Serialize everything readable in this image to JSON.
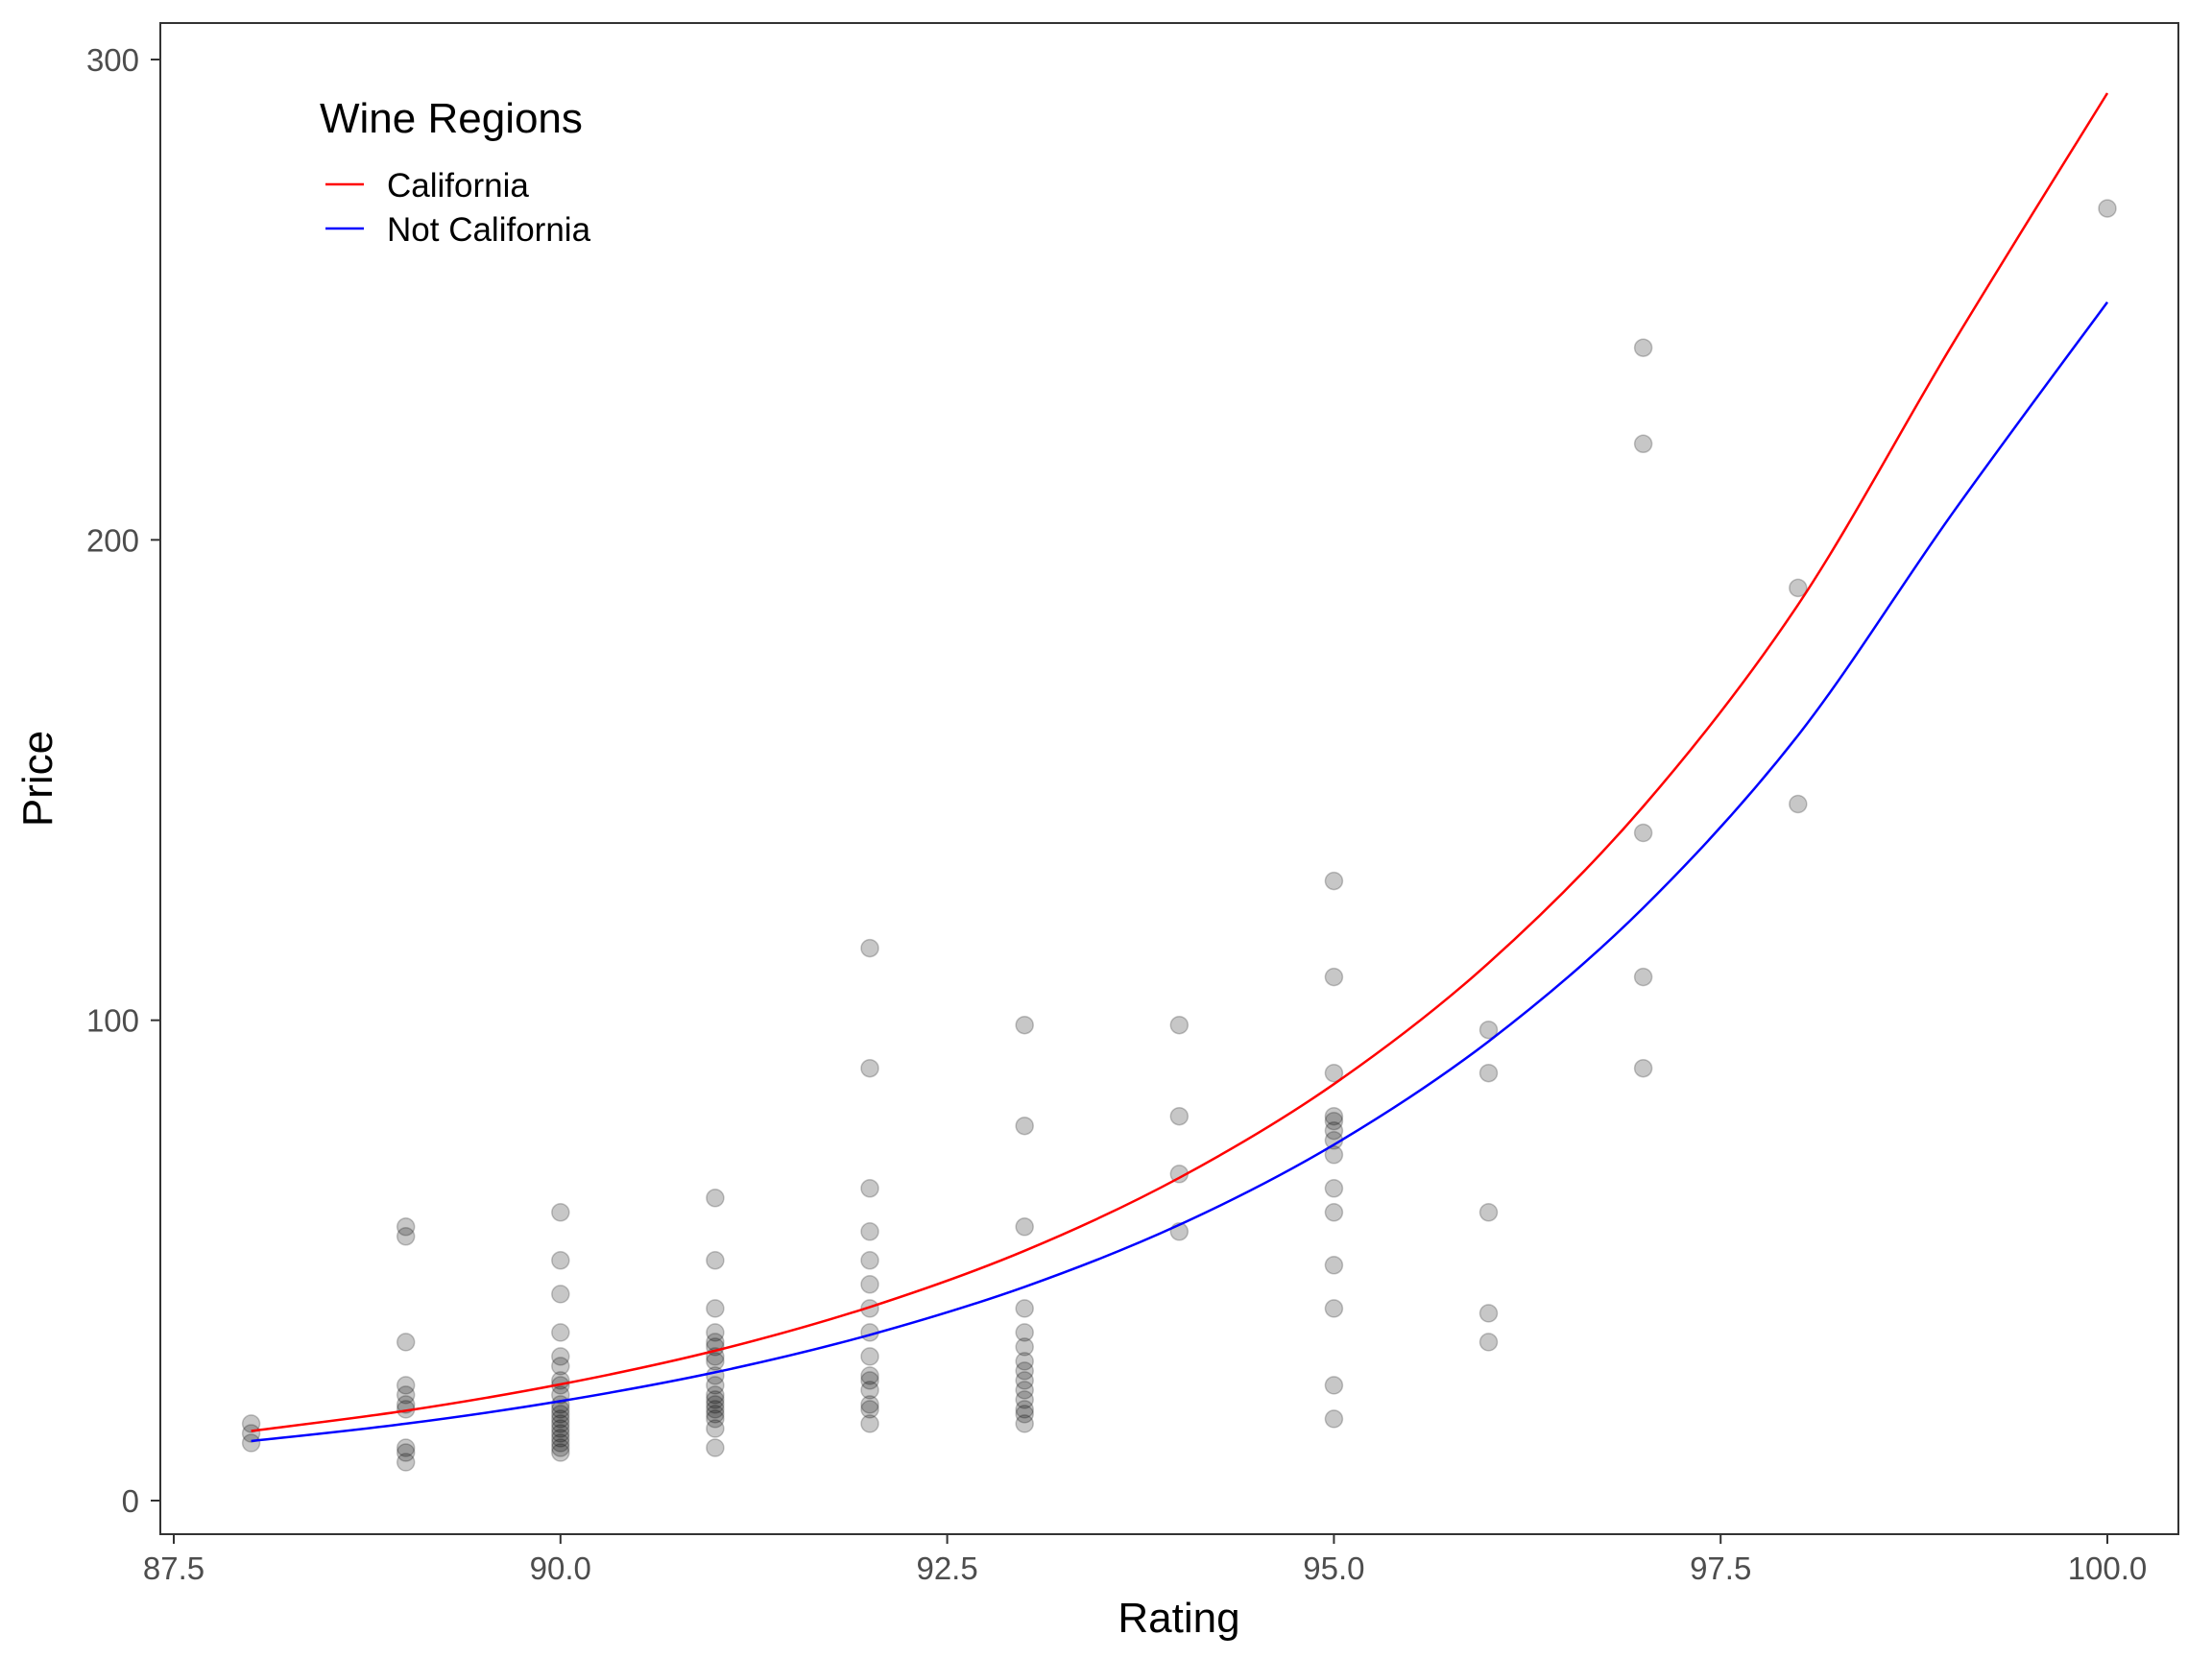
{
  "chart_data": {
    "type": "scatter",
    "title": "",
    "xlabel": "Rating",
    "ylabel": "Price",
    "xlim": [
      87.5,
      100.0
    ],
    "ylim": [
      0,
      300
    ],
    "x_ticks": [
      87.5,
      90.0,
      92.5,
      95.0,
      97.5,
      100.0
    ],
    "x_tick_labels": [
      "87.5",
      "90.0",
      "92.5",
      "95.0",
      "97.5",
      "100.0"
    ],
    "y_ticks": [
      0,
      100,
      200,
      300
    ],
    "y_tick_labels": [
      "0",
      "100",
      "200",
      "300"
    ],
    "grid": false,
    "legend": {
      "title": "Wine Regions",
      "position": "top-left",
      "entries": [
        {
          "label": "California",
          "color": "#ff0000"
        },
        {
          "label": "Not California",
          "color": "#0000ff"
        }
      ]
    },
    "point_color": "#000000",
    "point_opacity": 0.22,
    "points": [
      {
        "x": 88,
        "y": 16
      },
      {
        "x": 88,
        "y": 14
      },
      {
        "x": 88,
        "y": 12
      },
      {
        "x": 89,
        "y": 57
      },
      {
        "x": 89,
        "y": 55
      },
      {
        "x": 89,
        "y": 33
      },
      {
        "x": 89,
        "y": 24
      },
      {
        "x": 89,
        "y": 22
      },
      {
        "x": 89,
        "y": 20
      },
      {
        "x": 89,
        "y": 19
      },
      {
        "x": 89,
        "y": 11
      },
      {
        "x": 89,
        "y": 10
      },
      {
        "x": 89,
        "y": 8
      },
      {
        "x": 90,
        "y": 60
      },
      {
        "x": 90,
        "y": 50
      },
      {
        "x": 90,
        "y": 43
      },
      {
        "x": 90,
        "y": 35
      },
      {
        "x": 90,
        "y": 30
      },
      {
        "x": 90,
        "y": 28
      },
      {
        "x": 90,
        "y": 25
      },
      {
        "x": 90,
        "y": 24
      },
      {
        "x": 90,
        "y": 22
      },
      {
        "x": 90,
        "y": 20
      },
      {
        "x": 90,
        "y": 19
      },
      {
        "x": 90,
        "y": 18
      },
      {
        "x": 90,
        "y": 17
      },
      {
        "x": 90,
        "y": 16
      },
      {
        "x": 90,
        "y": 15
      },
      {
        "x": 90,
        "y": 14
      },
      {
        "x": 90,
        "y": 13
      },
      {
        "x": 90,
        "y": 12
      },
      {
        "x": 90,
        "y": 11
      },
      {
        "x": 90,
        "y": 10
      },
      {
        "x": 91,
        "y": 63
      },
      {
        "x": 91,
        "y": 50
      },
      {
        "x": 91,
        "y": 40
      },
      {
        "x": 91,
        "y": 35
      },
      {
        "x": 91,
        "y": 33
      },
      {
        "x": 91,
        "y": 32
      },
      {
        "x": 91,
        "y": 30
      },
      {
        "x": 91,
        "y": 29
      },
      {
        "x": 91,
        "y": 26
      },
      {
        "x": 91,
        "y": 24
      },
      {
        "x": 91,
        "y": 22
      },
      {
        "x": 91,
        "y": 21
      },
      {
        "x": 91,
        "y": 20
      },
      {
        "x": 91,
        "y": 19
      },
      {
        "x": 91,
        "y": 18
      },
      {
        "x": 91,
        "y": 17
      },
      {
        "x": 91,
        "y": 15
      },
      {
        "x": 91,
        "y": 11
      },
      {
        "x": 92,
        "y": 115
      },
      {
        "x": 92,
        "y": 90
      },
      {
        "x": 92,
        "y": 65
      },
      {
        "x": 92,
        "y": 56
      },
      {
        "x": 92,
        "y": 50
      },
      {
        "x": 92,
        "y": 45
      },
      {
        "x": 92,
        "y": 40
      },
      {
        "x": 92,
        "y": 35
      },
      {
        "x": 92,
        "y": 30
      },
      {
        "x": 92,
        "y": 26
      },
      {
        "x": 92,
        "y": 25
      },
      {
        "x": 92,
        "y": 23
      },
      {
        "x": 92,
        "y": 20
      },
      {
        "x": 92,
        "y": 19
      },
      {
        "x": 92,
        "y": 16
      },
      {
        "x": 93,
        "y": 99
      },
      {
        "x": 93,
        "y": 78
      },
      {
        "x": 93,
        "y": 57
      },
      {
        "x": 93,
        "y": 40
      },
      {
        "x": 93,
        "y": 35
      },
      {
        "x": 93,
        "y": 32
      },
      {
        "x": 93,
        "y": 29
      },
      {
        "x": 93,
        "y": 27
      },
      {
        "x": 93,
        "y": 25
      },
      {
        "x": 93,
        "y": 23
      },
      {
        "x": 93,
        "y": 21
      },
      {
        "x": 93,
        "y": 19
      },
      {
        "x": 93,
        "y": 18
      },
      {
        "x": 93,
        "y": 16
      },
      {
        "x": 94,
        "y": 99
      },
      {
        "x": 94,
        "y": 80
      },
      {
        "x": 94,
        "y": 68
      },
      {
        "x": 94,
        "y": 56
      },
      {
        "x": 95,
        "y": 129
      },
      {
        "x": 95,
        "y": 109
      },
      {
        "x": 95,
        "y": 89
      },
      {
        "x": 95,
        "y": 80
      },
      {
        "x": 95,
        "y": 79
      },
      {
        "x": 95,
        "y": 77
      },
      {
        "x": 95,
        "y": 75
      },
      {
        "x": 95,
        "y": 72
      },
      {
        "x": 95,
        "y": 65
      },
      {
        "x": 95,
        "y": 60
      },
      {
        "x": 95,
        "y": 49
      },
      {
        "x": 95,
        "y": 40
      },
      {
        "x": 95,
        "y": 24
      },
      {
        "x": 95,
        "y": 17
      },
      {
        "x": 96,
        "y": 98
      },
      {
        "x": 96,
        "y": 89
      },
      {
        "x": 96,
        "y": 60
      },
      {
        "x": 96,
        "y": 39
      },
      {
        "x": 96,
        "y": 33
      },
      {
        "x": 97,
        "y": 240
      },
      {
        "x": 97,
        "y": 220
      },
      {
        "x": 97,
        "y": 139
      },
      {
        "x": 97,
        "y": 109
      },
      {
        "x": 97,
        "y": 90
      },
      {
        "x": 98,
        "y": 190
      },
      {
        "x": 98,
        "y": 145
      },
      {
        "x": 100,
        "y": 269
      }
    ],
    "series": [
      {
        "name": "California",
        "color": "#ff0000",
        "x": [
          88,
          89,
          90,
          91,
          92,
          93,
          94,
          95,
          96,
          97,
          98,
          99,
          100
        ],
        "y": [
          14.5,
          18.7,
          24.2,
          31.2,
          40.3,
          52.0,
          67.2,
          86.7,
          111.9,
          144.5,
          186.5,
          240.8,
          293.0
        ]
      },
      {
        "name": "Not California",
        "color": "#0000ff",
        "x": [
          88,
          89,
          90,
          91,
          92,
          93,
          94,
          95,
          96,
          97,
          98,
          99,
          100
        ],
        "y": [
          12.4,
          16.0,
          20.7,
          26.7,
          34.5,
          44.5,
          57.4,
          74.1,
          95.6,
          123.4,
          159.3,
          205.6,
          249.5
        ]
      }
    ]
  }
}
